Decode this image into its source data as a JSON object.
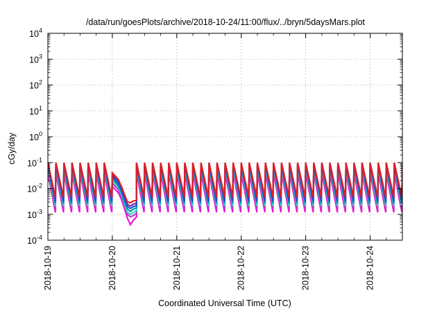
{
  "chart_data": {
    "type": "line",
    "title": "/data/run/goesPlots/archive/2018-10-24/11:00/flux/../bryn/5daysMars.plot",
    "xlabel": "Coordinated Universal Time (UTC)",
    "ylabel": "cGy/day",
    "yscale": "log",
    "ylim": [
      0.0001,
      10000
    ],
    "xlim": [
      "2018-10-19 00:00",
      "2018-10-24 12:00"
    ],
    "x_ticks": [
      "2018-10-19",
      "2018-10-20",
      "2018-10-21",
      "2018-10-22",
      "2018-10-23",
      "2018-10-24"
    ],
    "y_ticks": [
      {
        "value": 0.0001,
        "base": "10",
        "exp": "-4"
      },
      {
        "value": 0.001,
        "base": "10",
        "exp": "-3"
      },
      {
        "value": 0.01,
        "base": "10",
        "exp": "-2"
      },
      {
        "value": 0.1,
        "base": "10",
        "exp": "-1"
      },
      {
        "value": 1,
        "base": "10",
        "exp": "0"
      },
      {
        "value": 10,
        "base": "10",
        "exp": "1"
      },
      {
        "value": 100,
        "base": "10",
        "exp": "2"
      },
      {
        "value": 1000,
        "base": "10",
        "exp": "3"
      },
      {
        "value": 10000,
        "base": "10",
        "exp": "4"
      }
    ],
    "grid": true,
    "legend": "none",
    "cycle": {
      "start": "2018-10-19 00:00",
      "period_hours": 3,
      "peak": [
        0.1,
        0.095,
        0.085,
        0.075,
        0.065,
        0.05,
        0.04
      ],
      "trough": [
        0.0045,
        0.0038,
        0.0032,
        0.0026,
        0.0021,
        0.0016,
        0.0012
      ],
      "gap": {
        "start": "2018-10-20 06:00",
        "end": "2018-10-20 09:00"
      }
    },
    "dip": {
      "start": "2018-10-20 00:00",
      "end": "2018-10-20 09:00",
      "values": [
        [
          0.04,
          0.03,
          0.022,
          0.012,
          0.006,
          0.003,
          0.0028,
          0.0033,
          0.0035
        ],
        [
          0.035,
          0.026,
          0.019,
          0.01,
          0.0048,
          0.0024,
          0.0021,
          0.0025,
          0.0027
        ],
        [
          0.03,
          0.022,
          0.016,
          0.0085,
          0.004,
          0.002,
          0.0017,
          0.002,
          0.0022
        ],
        [
          0.025,
          0.018,
          0.013,
          0.0072,
          0.0033,
          0.0016,
          0.0013,
          0.0016,
          0.0018
        ],
        [
          0.02,
          0.015,
          0.011,
          0.006,
          0.0027,
          0.0012,
          0.001,
          0.0012,
          0.0014
        ],
        [
          0.016,
          0.012,
          0.009,
          0.005,
          0.0022,
          0.001,
          0.0008,
          0.0009,
          0.0011
        ],
        [
          0.012,
          0.009,
          0.0068,
          0.0038,
          0.0017,
          0.0007,
          0.0004,
          0.0006,
          0.0008
        ]
      ]
    },
    "series_colors": [
      "#dd1f25",
      "#7b2d8e",
      "#1f4fd8",
      "#0097a7",
      "#3fd1c5",
      "#b23fc2",
      "#ee14d8"
    ]
  }
}
